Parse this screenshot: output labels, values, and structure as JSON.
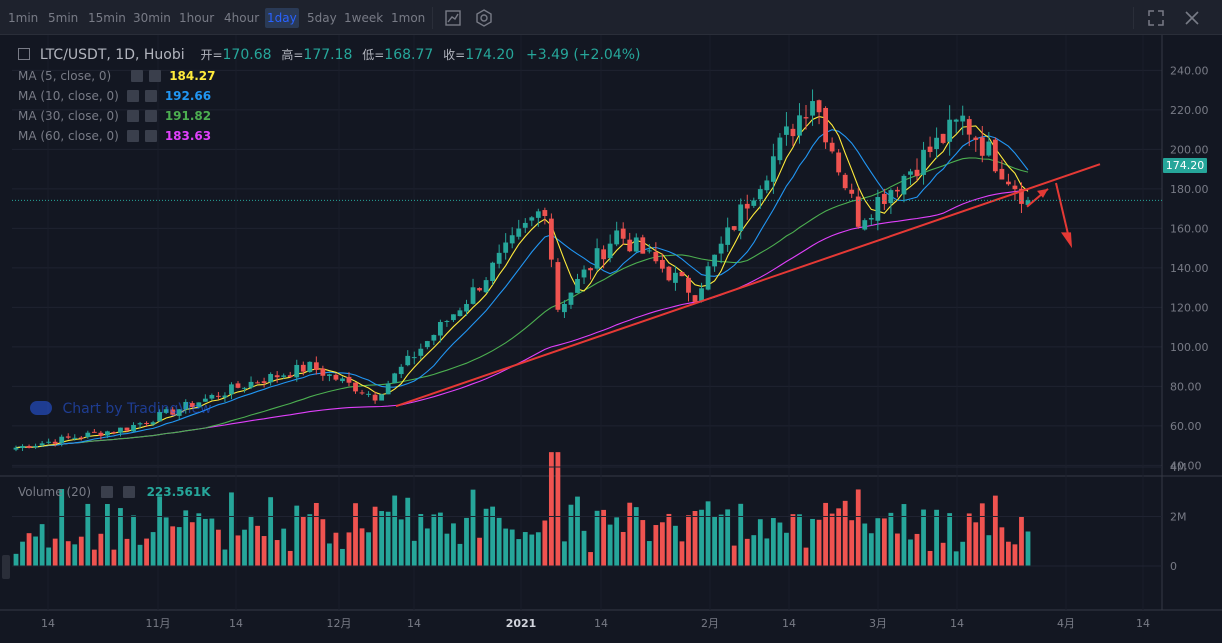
{
  "toolbar": {
    "intervals": [
      "1min",
      "5min",
      "15min",
      "30min",
      "1hour",
      "4hour",
      "1day",
      "5day",
      "1week",
      "1mon"
    ],
    "active_interval": "1day"
  },
  "legend": {
    "symbol": "LTC/USDT, 1D, Huobi",
    "open_label": "开=",
    "open": "170.68",
    "high_label": "高=",
    "high": "177.18",
    "low_label": "低=",
    "low": "168.77",
    "close_label": "收=",
    "close": "174.20",
    "change": "+3.49 (+2.04%)",
    "indicators": [
      {
        "name": "MA (5, close, 0)",
        "value": "184.27",
        "color": "#ffeb3b"
      },
      {
        "name": "MA (10, close, 0)",
        "value": "192.66",
        "color": "#2196f3"
      },
      {
        "name": "MA (30, close, 0)",
        "value": "191.82",
        "color": "#4caf50"
      },
      {
        "name": "MA (60, close, 0)",
        "value": "183.63",
        "color": "#e040fb"
      }
    ],
    "volume_name": "Volume (20)",
    "volume_value": "223.561K"
  },
  "watermark": "Chart by TradingView",
  "colors": {
    "up": "#26a69a",
    "down": "#ef5350",
    "trendline": "#e53935",
    "arrow": "#e53935"
  },
  "chart_data": {
    "type": "candlestick",
    "title": "LTC/USDT, 1D, Huobi",
    "price_axis": {
      "ticks": [
        40,
        60,
        80,
        100,
        120,
        140,
        160,
        180,
        200,
        220,
        240
      ],
      "ylim": [
        33,
        251
      ]
    },
    "volume_axis": {
      "ticks": [
        "0",
        "2M",
        "4M"
      ],
      "ylim_millions": [
        0,
        5
      ]
    },
    "x_tick_labels": [
      "14",
      "11月",
      "14",
      "12月",
      "14",
      "2021",
      "14",
      "2月",
      "14",
      "3月",
      "14",
      "4月",
      "14"
    ],
    "last_price": 174.2,
    "candles_sampled": [
      {
        "date": "2020-10-20",
        "close": 49
      },
      {
        "date": "2020-11-06",
        "close": 59
      },
      {
        "date": "2020-11-25",
        "close": 82
      },
      {
        "date": "2020-12-04",
        "close": 90
      },
      {
        "date": "2020-12-14",
        "close": 75
      },
      {
        "date": "2020-12-28",
        "close": 124
      },
      {
        "date": "2021-01-09",
        "close": 172
      },
      {
        "date": "2021-01-11",
        "close": 120
      },
      {
        "date": "2021-01-20",
        "close": 158
      },
      {
        "date": "2021-02-01",
        "close": 127
      },
      {
        "date": "2021-02-10",
        "close": 180
      },
      {
        "date": "2021-02-19",
        "close": 228
      },
      {
        "date": "2021-02-26",
        "close": 165
      },
      {
        "date": "2021-03-14",
        "close": 215
      },
      {
        "date": "2021-03-24",
        "close": 174.2
      }
    ],
    "series": [
      {
        "name": "MA (5, close, 0)",
        "last": 184.27
      },
      {
        "name": "MA (10, close, 0)",
        "last": 192.66
      },
      {
        "name": "MA (30, close, 0)",
        "last": 191.82
      },
      {
        "name": "MA (60, close, 0)",
        "last": 183.63
      }
    ],
    "volume_last": "223.561K"
  }
}
